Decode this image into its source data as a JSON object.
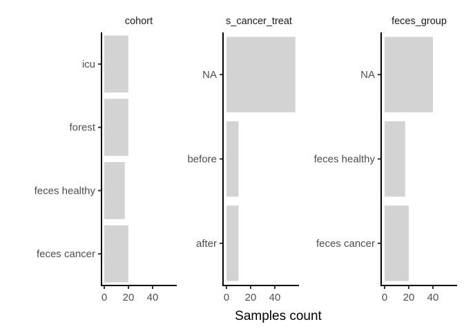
{
  "chart_data": [
    {
      "type": "bar",
      "orientation": "horizontal",
      "title": "cohort",
      "categories": [
        "icu",
        "forest",
        "feces healthy",
        "feces cancer"
      ],
      "values": [
        20,
        20,
        17,
        20
      ],
      "xlim": [
        0,
        60
      ],
      "xticks": [
        0,
        20,
        40
      ],
      "color": "#d3d3d3"
    },
    {
      "type": "bar",
      "orientation": "horizontal",
      "title": "s_cancer_treat",
      "categories": [
        "NA",
        "before",
        "after"
      ],
      "values": [
        57,
        10,
        10
      ],
      "xlim": [
        0,
        60
      ],
      "xticks": [
        0,
        20,
        40
      ],
      "color": "#d3d3d3"
    },
    {
      "type": "bar",
      "orientation": "horizontal",
      "title": "feces_group",
      "categories": [
        "NA",
        "feces healthy",
        "feces cancer"
      ],
      "values": [
        40,
        17,
        20
      ],
      "xlim": [
        0,
        60
      ],
      "xticks": [
        0,
        20,
        40
      ],
      "color": "#d3d3d3"
    }
  ],
  "xlabel": "Samples count"
}
